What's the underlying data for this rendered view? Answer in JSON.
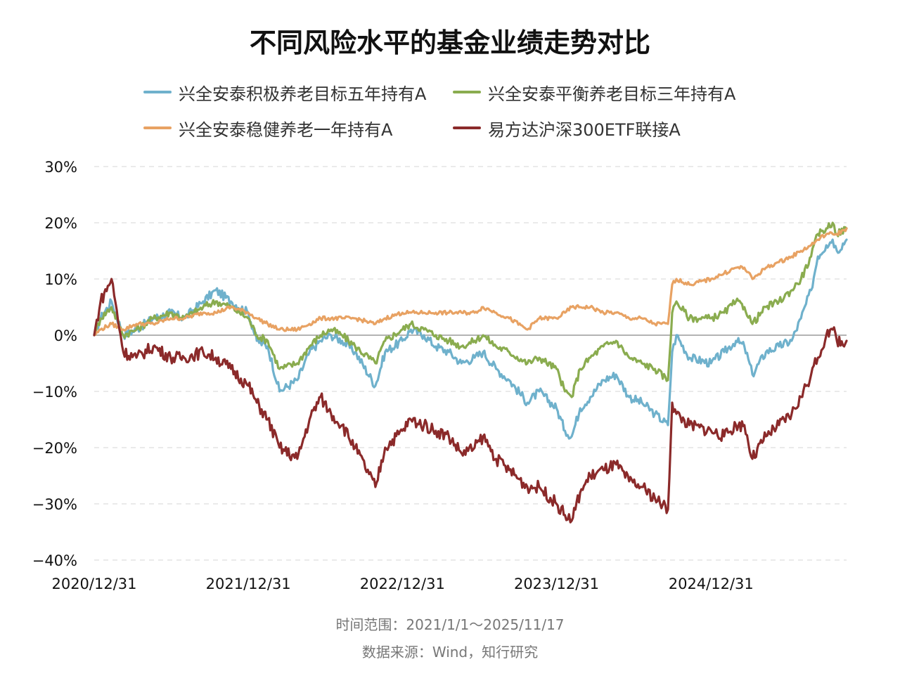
{
  "chart_data": {
    "type": "line",
    "title": "不同风险水平的基金业绩走势对比",
    "xlabel": "",
    "ylabel": "",
    "ylim": [
      -40,
      30
    ],
    "yticks": [
      30,
      20,
      10,
      0,
      -10,
      -20,
      -30,
      -40
    ],
    "ytick_labels": [
      "30%",
      "20%",
      "10%",
      "0%",
      "−10%",
      "−20%",
      "−30%",
      "−40%"
    ],
    "xticks": [
      "2020-12-31",
      "2021-12-31",
      "2022-12-31",
      "2023-12-31",
      "2024-12-31"
    ],
    "xtick_labels": [
      "2020/12/31",
      "2021/12/31",
      "2022/12/31",
      "2023/12/31",
      "2024/12/31"
    ],
    "xlim": [
      "2020-12-31",
      "2025-11-17"
    ],
    "grid": "horizontal dashed",
    "legend_position": "top",
    "series": [
      {
        "name": "兴全安泰积极养老目标五年持有A",
        "color": "#6fb1cc",
        "points": [
          [
            "2020-12-31",
            0
          ],
          [
            "2021-01-15",
            3
          ],
          [
            "2021-02-10",
            6
          ],
          [
            "2021-03-10",
            0
          ],
          [
            "2021-04-10",
            1
          ],
          [
            "2021-05-20",
            3
          ],
          [
            "2021-06-30",
            4
          ],
          [
            "2021-08-01",
            3
          ],
          [
            "2021-09-15",
            6
          ],
          [
            "2021-10-15",
            8
          ],
          [
            "2021-11-20",
            6
          ],
          [
            "2021-12-31",
            4
          ],
          [
            "2022-01-20",
            -1
          ],
          [
            "2022-02-15",
            -2
          ],
          [
            "2022-03-15",
            -10
          ],
          [
            "2022-04-26",
            -8
          ],
          [
            "2022-05-25",
            -3
          ],
          [
            "2022-06-20",
            -1
          ],
          [
            "2022-07-15",
            0
          ],
          [
            "2022-08-10",
            -1
          ],
          [
            "2022-09-10",
            -3
          ],
          [
            "2022-10-28",
            -9
          ],
          [
            "2022-11-20",
            -3
          ],
          [
            "2022-12-31",
            -1
          ],
          [
            "2023-01-20",
            1
          ],
          [
            "2023-02-20",
            0
          ],
          [
            "2023-03-20",
            -2
          ],
          [
            "2023-04-20",
            -3
          ],
          [
            "2023-05-20",
            -5
          ],
          [
            "2023-06-20",
            -4
          ],
          [
            "2023-07-10",
            -3
          ],
          [
            "2023-08-10",
            -6
          ],
          [
            "2023-09-10",
            -8
          ],
          [
            "2023-10-23",
            -12
          ],
          [
            "2023-11-20",
            -10
          ],
          [
            "2023-12-31",
            -13
          ],
          [
            "2024-01-20",
            -17
          ],
          [
            "2024-02-05",
            -18
          ],
          [
            "2024-02-25",
            -13
          ],
          [
            "2024-03-20",
            -11
          ],
          [
            "2024-04-20",
            -8
          ],
          [
            "2024-05-20",
            -7
          ],
          [
            "2024-06-20",
            -11
          ],
          [
            "2024-07-20",
            -12
          ],
          [
            "2024-08-20",
            -14
          ],
          [
            "2024-09-20",
            -16
          ],
          [
            "2024-09-30",
            -3
          ],
          [
            "2024-10-10",
            0
          ],
          [
            "2024-11-10",
            -4
          ],
          [
            "2024-12-31",
            -5
          ],
          [
            "2025-01-31",
            -3
          ],
          [
            "2025-02-28",
            -1
          ],
          [
            "2025-03-20",
            -2
          ],
          [
            "2025-04-08",
            -7
          ],
          [
            "2025-05-10",
            -3
          ],
          [
            "2025-06-10",
            -2
          ],
          [
            "2025-07-10",
            -1
          ],
          [
            "2025-08-01",
            3
          ],
          [
            "2025-08-25",
            8
          ],
          [
            "2025-09-10",
            14
          ],
          [
            "2025-09-30",
            16
          ],
          [
            "2025-10-15",
            17
          ],
          [
            "2025-10-25",
            15
          ],
          [
            "2025-11-17",
            17
          ]
        ]
      },
      {
        "name": "兴全安泰平衡养老目标三年持有A",
        "color": "#8aac4f",
        "points": [
          [
            "2020-12-31",
            0
          ],
          [
            "2021-01-15",
            3
          ],
          [
            "2021-02-10",
            5
          ],
          [
            "2021-03-10",
            0
          ],
          [
            "2021-04-10",
            1
          ],
          [
            "2021-05-20",
            3
          ],
          [
            "2021-06-30",
            4
          ],
          [
            "2021-08-01",
            3
          ],
          [
            "2021-09-15",
            5
          ],
          [
            "2021-10-15",
            6
          ],
          [
            "2021-11-20",
            5
          ],
          [
            "2021-12-31",
            3
          ],
          [
            "2022-01-20",
            0
          ],
          [
            "2022-02-15",
            -1
          ],
          [
            "2022-03-15",
            -6
          ],
          [
            "2022-04-26",
            -5
          ],
          [
            "2022-05-25",
            -2
          ],
          [
            "2022-06-20",
            0
          ],
          [
            "2022-07-15",
            1
          ],
          [
            "2022-08-10",
            0
          ],
          [
            "2022-09-10",
            -2
          ],
          [
            "2022-10-28",
            -5
          ],
          [
            "2022-11-20",
            -1
          ],
          [
            "2022-12-31",
            1
          ],
          [
            "2023-01-20",
            2
          ],
          [
            "2023-02-20",
            1
          ],
          [
            "2023-03-20",
            0
          ],
          [
            "2023-04-20",
            -1
          ],
          [
            "2023-05-20",
            -2
          ],
          [
            "2023-06-20",
            -1
          ],
          [
            "2023-07-10",
            0
          ],
          [
            "2023-08-10",
            -2
          ],
          [
            "2023-09-10",
            -3
          ],
          [
            "2023-10-23",
            -5
          ],
          [
            "2023-11-20",
            -4
          ],
          [
            "2023-12-31",
            -6
          ],
          [
            "2024-01-20",
            -10
          ],
          [
            "2024-02-05",
            -11
          ],
          [
            "2024-02-25",
            -6
          ],
          [
            "2024-03-20",
            -4
          ],
          [
            "2024-04-20",
            -2
          ],
          [
            "2024-05-20",
            -1
          ],
          [
            "2024-06-20",
            -4
          ],
          [
            "2024-07-20",
            -5
          ],
          [
            "2024-08-20",
            -6
          ],
          [
            "2024-09-20",
            -8
          ],
          [
            "2024-09-30",
            4
          ],
          [
            "2024-10-10",
            6
          ],
          [
            "2024-11-10",
            3
          ],
          [
            "2024-12-31",
            3
          ],
          [
            "2025-01-31",
            4
          ],
          [
            "2025-02-28",
            6
          ],
          [
            "2025-03-20",
            5
          ],
          [
            "2025-04-08",
            2
          ],
          [
            "2025-05-10",
            5
          ],
          [
            "2025-06-10",
            6
          ],
          [
            "2025-07-10",
            8
          ],
          [
            "2025-08-01",
            10
          ],
          [
            "2025-08-25",
            14
          ],
          [
            "2025-09-10",
            18
          ],
          [
            "2025-09-30",
            19
          ],
          [
            "2025-10-15",
            20
          ],
          [
            "2025-10-25",
            18
          ],
          [
            "2025-11-17",
            19
          ]
        ]
      },
      {
        "name": "兴全安泰稳健养老一年持有A",
        "color": "#e8a263",
        "points": [
          [
            "2020-12-31",
            0
          ],
          [
            "2021-01-15",
            1
          ],
          [
            "2021-02-10",
            2
          ],
          [
            "2021-03-10",
            1
          ],
          [
            "2021-04-10",
            2
          ],
          [
            "2021-05-20",
            2
          ],
          [
            "2021-06-30",
            3
          ],
          [
            "2021-08-01",
            3
          ],
          [
            "2021-09-15",
            4
          ],
          [
            "2021-10-15",
            4
          ],
          [
            "2021-11-20",
            5
          ],
          [
            "2021-12-31",
            4
          ],
          [
            "2022-01-20",
            3
          ],
          [
            "2022-02-15",
            2
          ],
          [
            "2022-03-15",
            1
          ],
          [
            "2022-04-26",
            1
          ],
          [
            "2022-05-25",
            2
          ],
          [
            "2022-06-20",
            3
          ],
          [
            "2022-07-15",
            3
          ],
          [
            "2022-08-10",
            3
          ],
          [
            "2022-09-10",
            3
          ],
          [
            "2022-10-28",
            2
          ],
          [
            "2022-11-20",
            3
          ],
          [
            "2022-12-31",
            4
          ],
          [
            "2023-01-20",
            4
          ],
          [
            "2023-02-20",
            4
          ],
          [
            "2023-03-20",
            4
          ],
          [
            "2023-04-20",
            4
          ],
          [
            "2023-05-20",
            4
          ],
          [
            "2023-06-20",
            4
          ],
          [
            "2023-07-10",
            5
          ],
          [
            "2023-08-10",
            4
          ],
          [
            "2023-09-10",
            3
          ],
          [
            "2023-10-23",
            1
          ],
          [
            "2023-11-20",
            3
          ],
          [
            "2023-12-31",
            3
          ],
          [
            "2024-01-20",
            4
          ],
          [
            "2024-02-05",
            5
          ],
          [
            "2024-02-25",
            5
          ],
          [
            "2024-03-20",
            5
          ],
          [
            "2024-04-20",
            4
          ],
          [
            "2024-05-20",
            4
          ],
          [
            "2024-06-20",
            3
          ],
          [
            "2024-07-20",
            3
          ],
          [
            "2024-08-20",
            2
          ],
          [
            "2024-09-20",
            2
          ],
          [
            "2024-09-30",
            9
          ],
          [
            "2024-10-10",
            10
          ],
          [
            "2024-11-10",
            9
          ],
          [
            "2024-12-31",
            10
          ],
          [
            "2025-01-31",
            11
          ],
          [
            "2025-02-28",
            12
          ],
          [
            "2025-03-20",
            12
          ],
          [
            "2025-04-08",
            10
          ],
          [
            "2025-05-10",
            12
          ],
          [
            "2025-06-10",
            13
          ],
          [
            "2025-07-10",
            14
          ],
          [
            "2025-08-01",
            15
          ],
          [
            "2025-08-25",
            16
          ],
          [
            "2025-09-10",
            17
          ],
          [
            "2025-09-30",
            18
          ],
          [
            "2025-10-15",
            18
          ],
          [
            "2025-10-25",
            18
          ],
          [
            "2025-11-17",
            19
          ]
        ]
      },
      {
        "name": "易方达沪深300ETF联接A",
        "color": "#8b2a2a",
        "points": [
          [
            "2020-12-31",
            0
          ],
          [
            "2021-01-15",
            6
          ],
          [
            "2021-02-10",
            10
          ],
          [
            "2021-03-10",
            -3
          ],
          [
            "2021-04-10",
            -4
          ],
          [
            "2021-05-20",
            -2
          ],
          [
            "2021-06-30",
            -4
          ],
          [
            "2021-08-01",
            -4
          ],
          [
            "2021-09-15",
            -3
          ],
          [
            "2021-10-15",
            -4
          ],
          [
            "2021-11-20",
            -6
          ],
          [
            "2021-12-31",
            -9
          ],
          [
            "2022-01-20",
            -12
          ],
          [
            "2022-02-15",
            -15
          ],
          [
            "2022-03-15",
            -20
          ],
          [
            "2022-04-26",
            -22
          ],
          [
            "2022-05-25",
            -15
          ],
          [
            "2022-06-20",
            -11
          ],
          [
            "2022-07-15",
            -14
          ],
          [
            "2022-08-10",
            -16
          ],
          [
            "2022-09-10",
            -20
          ],
          [
            "2022-10-28",
            -27
          ],
          [
            "2022-11-20",
            -20
          ],
          [
            "2022-12-31",
            -17
          ],
          [
            "2023-01-20",
            -15
          ],
          [
            "2023-02-20",
            -16
          ],
          [
            "2023-03-20",
            -17
          ],
          [
            "2023-04-20",
            -18
          ],
          [
            "2023-05-20",
            -21
          ],
          [
            "2023-06-20",
            -20
          ],
          [
            "2023-07-10",
            -18
          ],
          [
            "2023-08-10",
            -22
          ],
          [
            "2023-09-10",
            -24
          ],
          [
            "2023-10-23",
            -27
          ],
          [
            "2023-11-20",
            -27
          ],
          [
            "2023-12-31",
            -30
          ],
          [
            "2024-01-20",
            -32
          ],
          [
            "2024-02-05",
            -33
          ],
          [
            "2024-02-25",
            -28
          ],
          [
            "2024-03-20",
            -25
          ],
          [
            "2024-04-20",
            -24
          ],
          [
            "2024-05-20",
            -23
          ],
          [
            "2024-06-20",
            -26
          ],
          [
            "2024-07-20",
            -27
          ],
          [
            "2024-08-20",
            -29
          ],
          [
            "2024-09-20",
            -31
          ],
          [
            "2024-09-30",
            -12
          ],
          [
            "2024-10-10",
            -14
          ],
          [
            "2024-11-10",
            -16
          ],
          [
            "2024-12-31",
            -17
          ],
          [
            "2025-01-31",
            -18
          ],
          [
            "2025-02-28",
            -16
          ],
          [
            "2025-03-20",
            -16
          ],
          [
            "2025-04-08",
            -22
          ],
          [
            "2025-05-10",
            -18
          ],
          [
            "2025-06-10",
            -16
          ],
          [
            "2025-07-10",
            -14
          ],
          [
            "2025-08-01",
            -11
          ],
          [
            "2025-08-25",
            -7
          ],
          [
            "2025-09-10",
            -4
          ],
          [
            "2025-09-30",
            0
          ],
          [
            "2025-10-15",
            1
          ],
          [
            "2025-10-25",
            -1
          ],
          [
            "2025-11-17",
            -1
          ]
        ]
      }
    ]
  },
  "footer": {
    "range": "时间范围：2021/1/1～2025/11/17",
    "source": "数据来源：Wind，知行研究"
  }
}
